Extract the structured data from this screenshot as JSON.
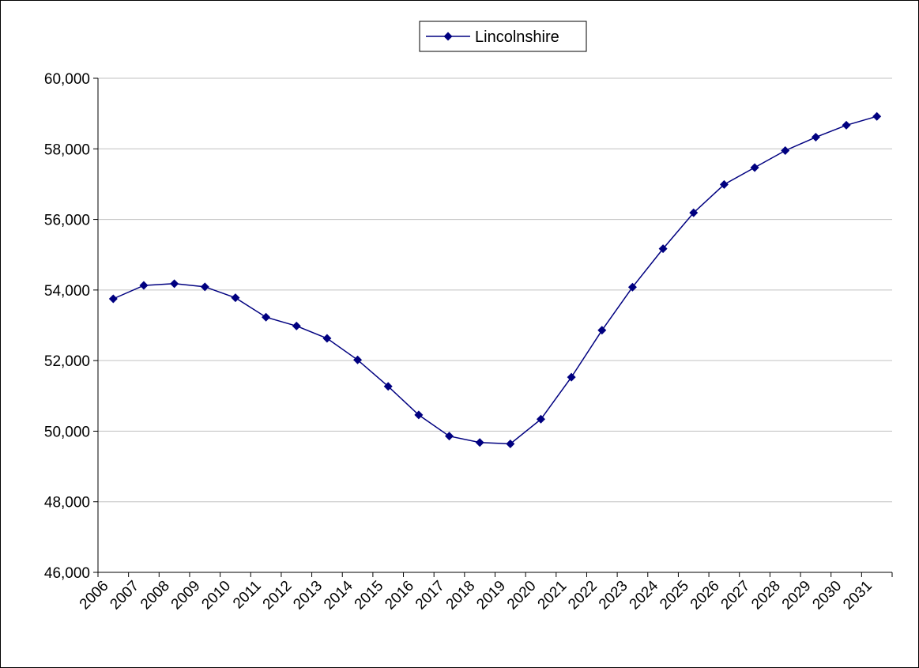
{
  "chart_data": {
    "type": "line",
    "title": "",
    "xlabel": "",
    "ylabel": "",
    "categories": [
      "2006",
      "2007",
      "2008",
      "2009",
      "2010",
      "2011",
      "2012",
      "2013",
      "2014",
      "2015",
      "2016",
      "2017",
      "2018",
      "2019",
      "2020",
      "2021",
      "2022",
      "2023",
      "2024",
      "2025",
      "2026",
      "2027",
      "2028",
      "2029",
      "2030",
      "2031"
    ],
    "series": [
      {
        "name": "Lincolnshire",
        "color": "#000080",
        "marker": "diamond",
        "values": [
          53750,
          54130,
          54180,
          54090,
          53780,
          53230,
          52980,
          52630,
          52020,
          51270,
          50460,
          49860,
          49680,
          49640,
          50340,
          51530,
          52860,
          54080,
          55170,
          56190,
          56990,
          57470,
          57950,
          58330,
          58670,
          58920
        ]
      }
    ],
    "ylim": [
      46000,
      60000
    ],
    "yticks": [
      "46,000",
      "48,000",
      "50,000",
      "52,000",
      "54,000",
      "56,000",
      "58,000",
      "60,000"
    ],
    "grid": true,
    "legend_position": "top-center"
  }
}
